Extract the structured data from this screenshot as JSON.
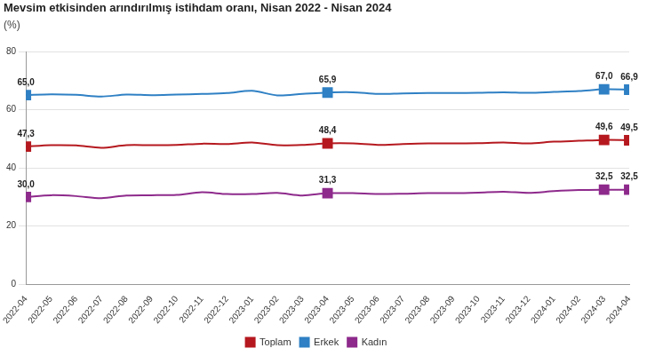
{
  "chart_data": {
    "type": "line",
    "title": "Mevsim etkisinden arındırılmış istihdam oranı, Nisan 2022 - Nisan 2024",
    "subtitle": "(%)",
    "categories": [
      "2022-04",
      "2022-05",
      "2022-06",
      "2022-07",
      "2022-08",
      "2022-09",
      "2022-10",
      "2022-11",
      "2022-12",
      "2023-01",
      "2023-02",
      "2023-03",
      "2023-04",
      "2023-05",
      "2023-06",
      "2023-07",
      "2023-08",
      "2023-09",
      "2023-10",
      "2023-11",
      "2023-12",
      "2024-01",
      "2024-02",
      "2024-03",
      "2024-04"
    ],
    "series": [
      {
        "name": "Toplam",
        "color": "#b5191f",
        "marker": "square",
        "values": [
          47.3,
          47.8,
          47.7,
          46.9,
          47.8,
          47.8,
          47.9,
          48.3,
          48.2,
          48.7,
          47.8,
          47.9,
          48.4,
          48.4,
          47.9,
          48.2,
          48.4,
          48.4,
          48.5,
          48.7,
          48.4,
          49.0,
          49.3,
          49.6,
          49.5
        ],
        "value_labels": [
          "47,3",
          null,
          null,
          null,
          null,
          null,
          null,
          null,
          null,
          null,
          null,
          null,
          "48,4",
          null,
          null,
          null,
          null,
          null,
          null,
          null,
          null,
          null,
          null,
          "49,6",
          "49,5"
        ]
      },
      {
        "name": "Erkek",
        "color": "#2f80c4",
        "marker": "square",
        "values": [
          65.0,
          65.3,
          65.1,
          64.5,
          65.2,
          65.0,
          65.2,
          65.4,
          65.7,
          66.5,
          64.9,
          65.4,
          65.9,
          66.0,
          65.4,
          65.6,
          65.7,
          65.7,
          65.8,
          66.0,
          65.8,
          66.1,
          66.4,
          67.0,
          66.9
        ],
        "value_labels": [
          "65,0",
          null,
          null,
          null,
          null,
          null,
          null,
          null,
          null,
          null,
          null,
          null,
          "65,9",
          null,
          null,
          null,
          null,
          null,
          null,
          null,
          null,
          null,
          null,
          "67,0",
          "66,9"
        ]
      },
      {
        "name": "Kadın",
        "color": "#8e2a8c",
        "marker": "square",
        "values": [
          30.0,
          30.6,
          30.3,
          29.6,
          30.5,
          30.6,
          30.7,
          31.6,
          31.0,
          31.0,
          31.4,
          30.5,
          31.3,
          31.3,
          31.0,
          31.1,
          31.3,
          31.3,
          31.5,
          31.8,
          31.4,
          32.0,
          32.4,
          32.5,
          32.5
        ],
        "value_labels": [
          "30,0",
          null,
          null,
          null,
          null,
          null,
          null,
          null,
          null,
          null,
          null,
          null,
          "31,3",
          null,
          null,
          null,
          null,
          null,
          null,
          null,
          null,
          null,
          null,
          "32,5",
          "32,5"
        ]
      }
    ],
    "ylim": [
      0,
      80
    ],
    "yticks": [
      0,
      20,
      40,
      60,
      80
    ],
    "grid": true,
    "legend": "bottom",
    "data_labels": true
  }
}
